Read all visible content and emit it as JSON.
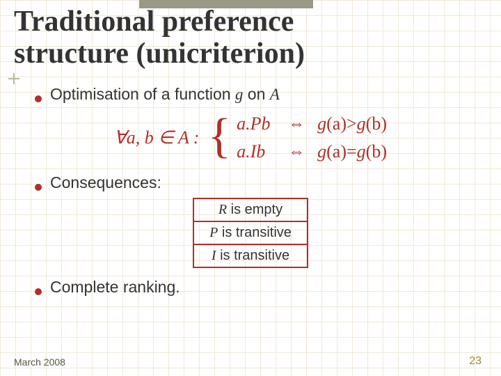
{
  "title_line1": "Traditional preference",
  "title_line2": "structure (unicriterion)",
  "bullets": {
    "b1_pre": "Optimisation of a function ",
    "b1_g": "g",
    "b1_mid": " on ",
    "b1_A": "A",
    "b2": "Consequences:",
    "b3": "Complete ranking."
  },
  "math": {
    "prefix": "∀a, b ∈ A :",
    "row1_lhs": "a.Pb",
    "row1_iff": "⇔",
    "row1_rhs_pre": "g",
    "row1_rhs_a": "(a)",
    "row1_rhs_op": ">",
    "row1_rhs_b": "(b)",
    "row2_lhs": "a.Ib",
    "row2_iff": "⇔",
    "row2_rhs_op": "="
  },
  "table": {
    "r1_sym": "R",
    "r1_txt": " is empty",
    "r2_sym": "P",
    "r2_txt": " is transitive",
    "r3_sym": "I",
    "r3_txt": " is transitive"
  },
  "footer": {
    "date": "March 2008",
    "page": "23"
  },
  "colors": {
    "accent": "#b03028",
    "grid": "#f0e8d8",
    "bar": "#9a9a84",
    "text": "#333333",
    "page_num": "#a08830"
  }
}
